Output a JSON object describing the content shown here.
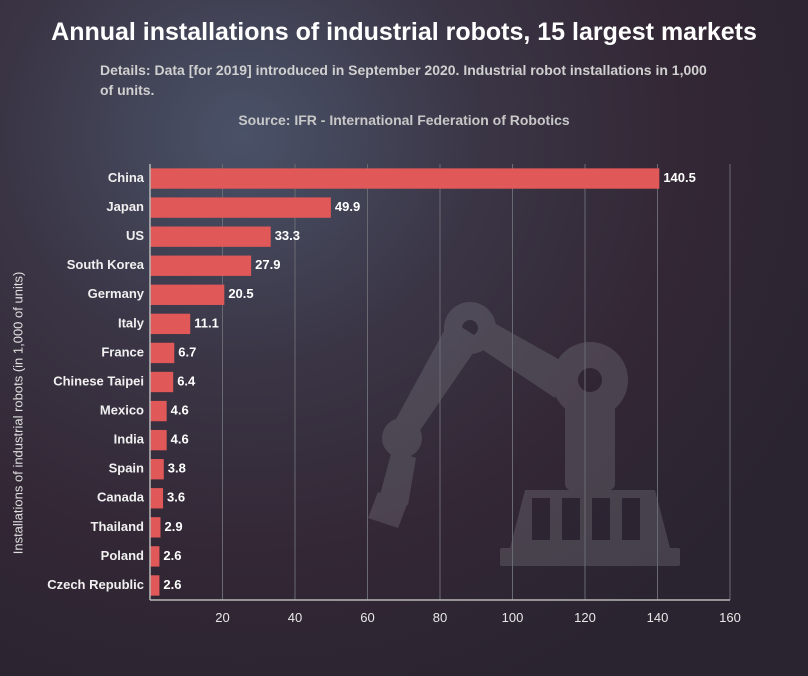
{
  "title": "Annual installations of industrial robots, 15 largest markets",
  "title_fontsize": 25,
  "details": "Details: Data [for 2019] introduced in September 2020. Industrial robot installations in 1,000 of units.",
  "details_fontsize": 14,
  "source": "Source: IFR - International Federation of Robotics",
  "source_fontsize": 14,
  "ylabel": "Installations of industrial robots (in 1,000 of units)",
  "ylabel_fontsize": 13,
  "chart": {
    "type": "bar-horizontal",
    "categories": [
      "China",
      "Japan",
      "US",
      "South Korea",
      "Germany",
      "Italy",
      "France",
      "Chinese Taipei",
      "Mexico",
      "India",
      "Spain",
      "Canada",
      "Thailand",
      "Poland",
      "Czech Republic"
    ],
    "values": [
      140.5,
      49.9,
      33.3,
      27.9,
      20.5,
      11.1,
      6.7,
      6.4,
      4.6,
      4.6,
      3.8,
      3.6,
      2.9,
      2.6,
      2.6
    ],
    "bar_color": "#e15858",
    "xlim": [
      0,
      160
    ],
    "xtick_step": 20,
    "xticks": [
      20,
      40,
      60,
      80,
      100,
      120,
      140,
      160
    ],
    "cat_fontsize": 13,
    "val_fontsize": 13,
    "tick_fontsize": 13,
    "bar_height_ratio": 0.7,
    "grid_color": "#6a6a72",
    "axis_color": "#b8b8b8",
    "text_color": "#f0f0f0"
  },
  "robot_icon_color": "#8a8a92"
}
